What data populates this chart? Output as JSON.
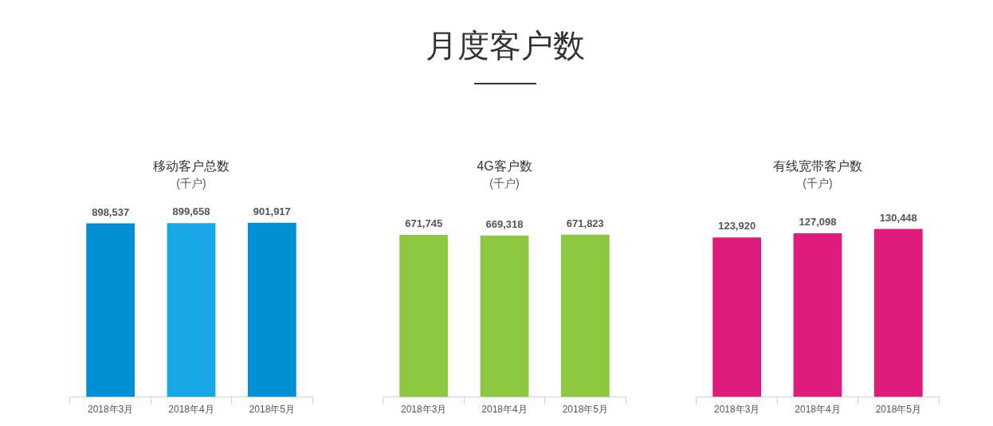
{
  "chart_data": [
    {
      "type": "other",
      "title": "月度客户数"
    },
    {
      "type": "bar",
      "title": "移动客户总数",
      "subtitle": "(千户)",
      "categories": [
        "2018年3月",
        "2018年4月",
        "2018年5月"
      ],
      "values": [
        898537,
        899658,
        901917
      ],
      "colors": [
        "#008fd5",
        "#1aa7ea",
        "#008fd5"
      ],
      "value_labels": [
        "898,537",
        "899,658",
        "901,917"
      ],
      "tick_labels": "x"
    },
    {
      "type": "bar",
      "title": "4G客户数",
      "subtitle": "(千户)",
      "categories": [
        "2018年3月",
        "2018年4月",
        "2018年5月"
      ],
      "values": [
        671745,
        669318,
        671823
      ],
      "color": "#8dc63f",
      "value_labels": [
        "671,745",
        "669,318",
        "671,823"
      ],
      "tick_labels": "x"
    },
    {
      "type": "bar",
      "title": "有线宽带客户数",
      "subtitle": "(千户)",
      "categories": [
        "2018年3月",
        "2018年4月",
        "2018年5月"
      ],
      "values": [
        123920,
        127098,
        130448
      ],
      "color": "#de1a7b",
      "value_labels": [
        "123,920",
        "127,098",
        "130,448"
      ],
      "tick_labels": "x"
    }
  ]
}
